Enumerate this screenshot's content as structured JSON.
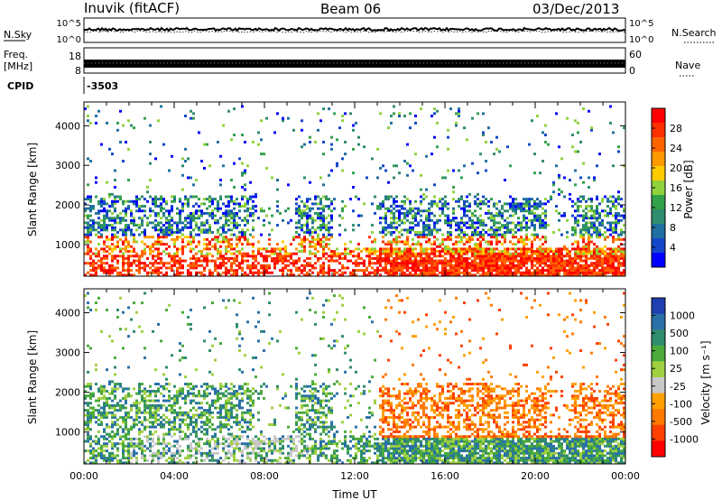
{
  "header": {
    "title": "Inuvik (fitACF)",
    "beam": "Beam 06",
    "date": "03/Dec/2013"
  },
  "top_panels": {
    "nsky": {
      "label": "N.Sky",
      "ticks_left": [
        "10^5",
        "10^0"
      ],
      "ticks_right": [
        "10^5",
        "10^0"
      ],
      "right_label": "N.Search"
    },
    "freq": {
      "label_line1": "Freq.",
      "label_line2": "[MHz]",
      "ticks_left": [
        "18",
        "8"
      ],
      "ticks_right": [
        "60",
        "0"
      ],
      "right_label": "Nave"
    },
    "cpid": {
      "label": "CPID",
      "value": "-3503"
    }
  },
  "chart_data": [
    {
      "type": "heatmap",
      "name": "power",
      "xlabel": "",
      "ylabel": "Slant Range [km]",
      "x_range": [
        "00:00",
        "24:00"
      ],
      "ylim": [
        200,
        4600
      ],
      "y_ticks": [
        "4000",
        "3000",
        "2000",
        "1000"
      ],
      "colorbar": {
        "label": "Power [dB]",
        "ticks": [
          "28",
          "24",
          "20",
          "16",
          "12",
          "8",
          "4"
        ],
        "colors": [
          "#ff0000",
          "#ff3000",
          "#ff6400",
          "#ff9900",
          "#ffcc00",
          "#8fd23c",
          "#33a04a",
          "#2f8c6e",
          "#1f6fa0",
          "#1446c8",
          "#0000ff"
        ]
      }
    },
    {
      "type": "heatmap",
      "name": "velocity",
      "xlabel": "Time UT",
      "ylabel": "Slant Range [km]",
      "x_ticks": [
        "00:00",
        "04:00",
        "08:00",
        "12:00",
        "16:00",
        "20:00",
        "00:00"
      ],
      "ylim": [
        200,
        4600
      ],
      "y_ticks": [
        "4000",
        "3000",
        "2000",
        "1000"
      ],
      "colorbar": {
        "label": "Velocity [m s⁻¹]",
        "ticks": [
          "1000",
          "500",
          "100",
          "25",
          "-25",
          "-100",
          "-500",
          "-1000"
        ],
        "colors": [
          "#2040b0",
          "#2a70a8",
          "#2f8c6e",
          "#4aaa3a",
          "#9fd040",
          "#c8c8c8",
          "#ffa000",
          "#ff7800",
          "#ff4000",
          "#ff0000"
        ]
      }
    }
  ]
}
